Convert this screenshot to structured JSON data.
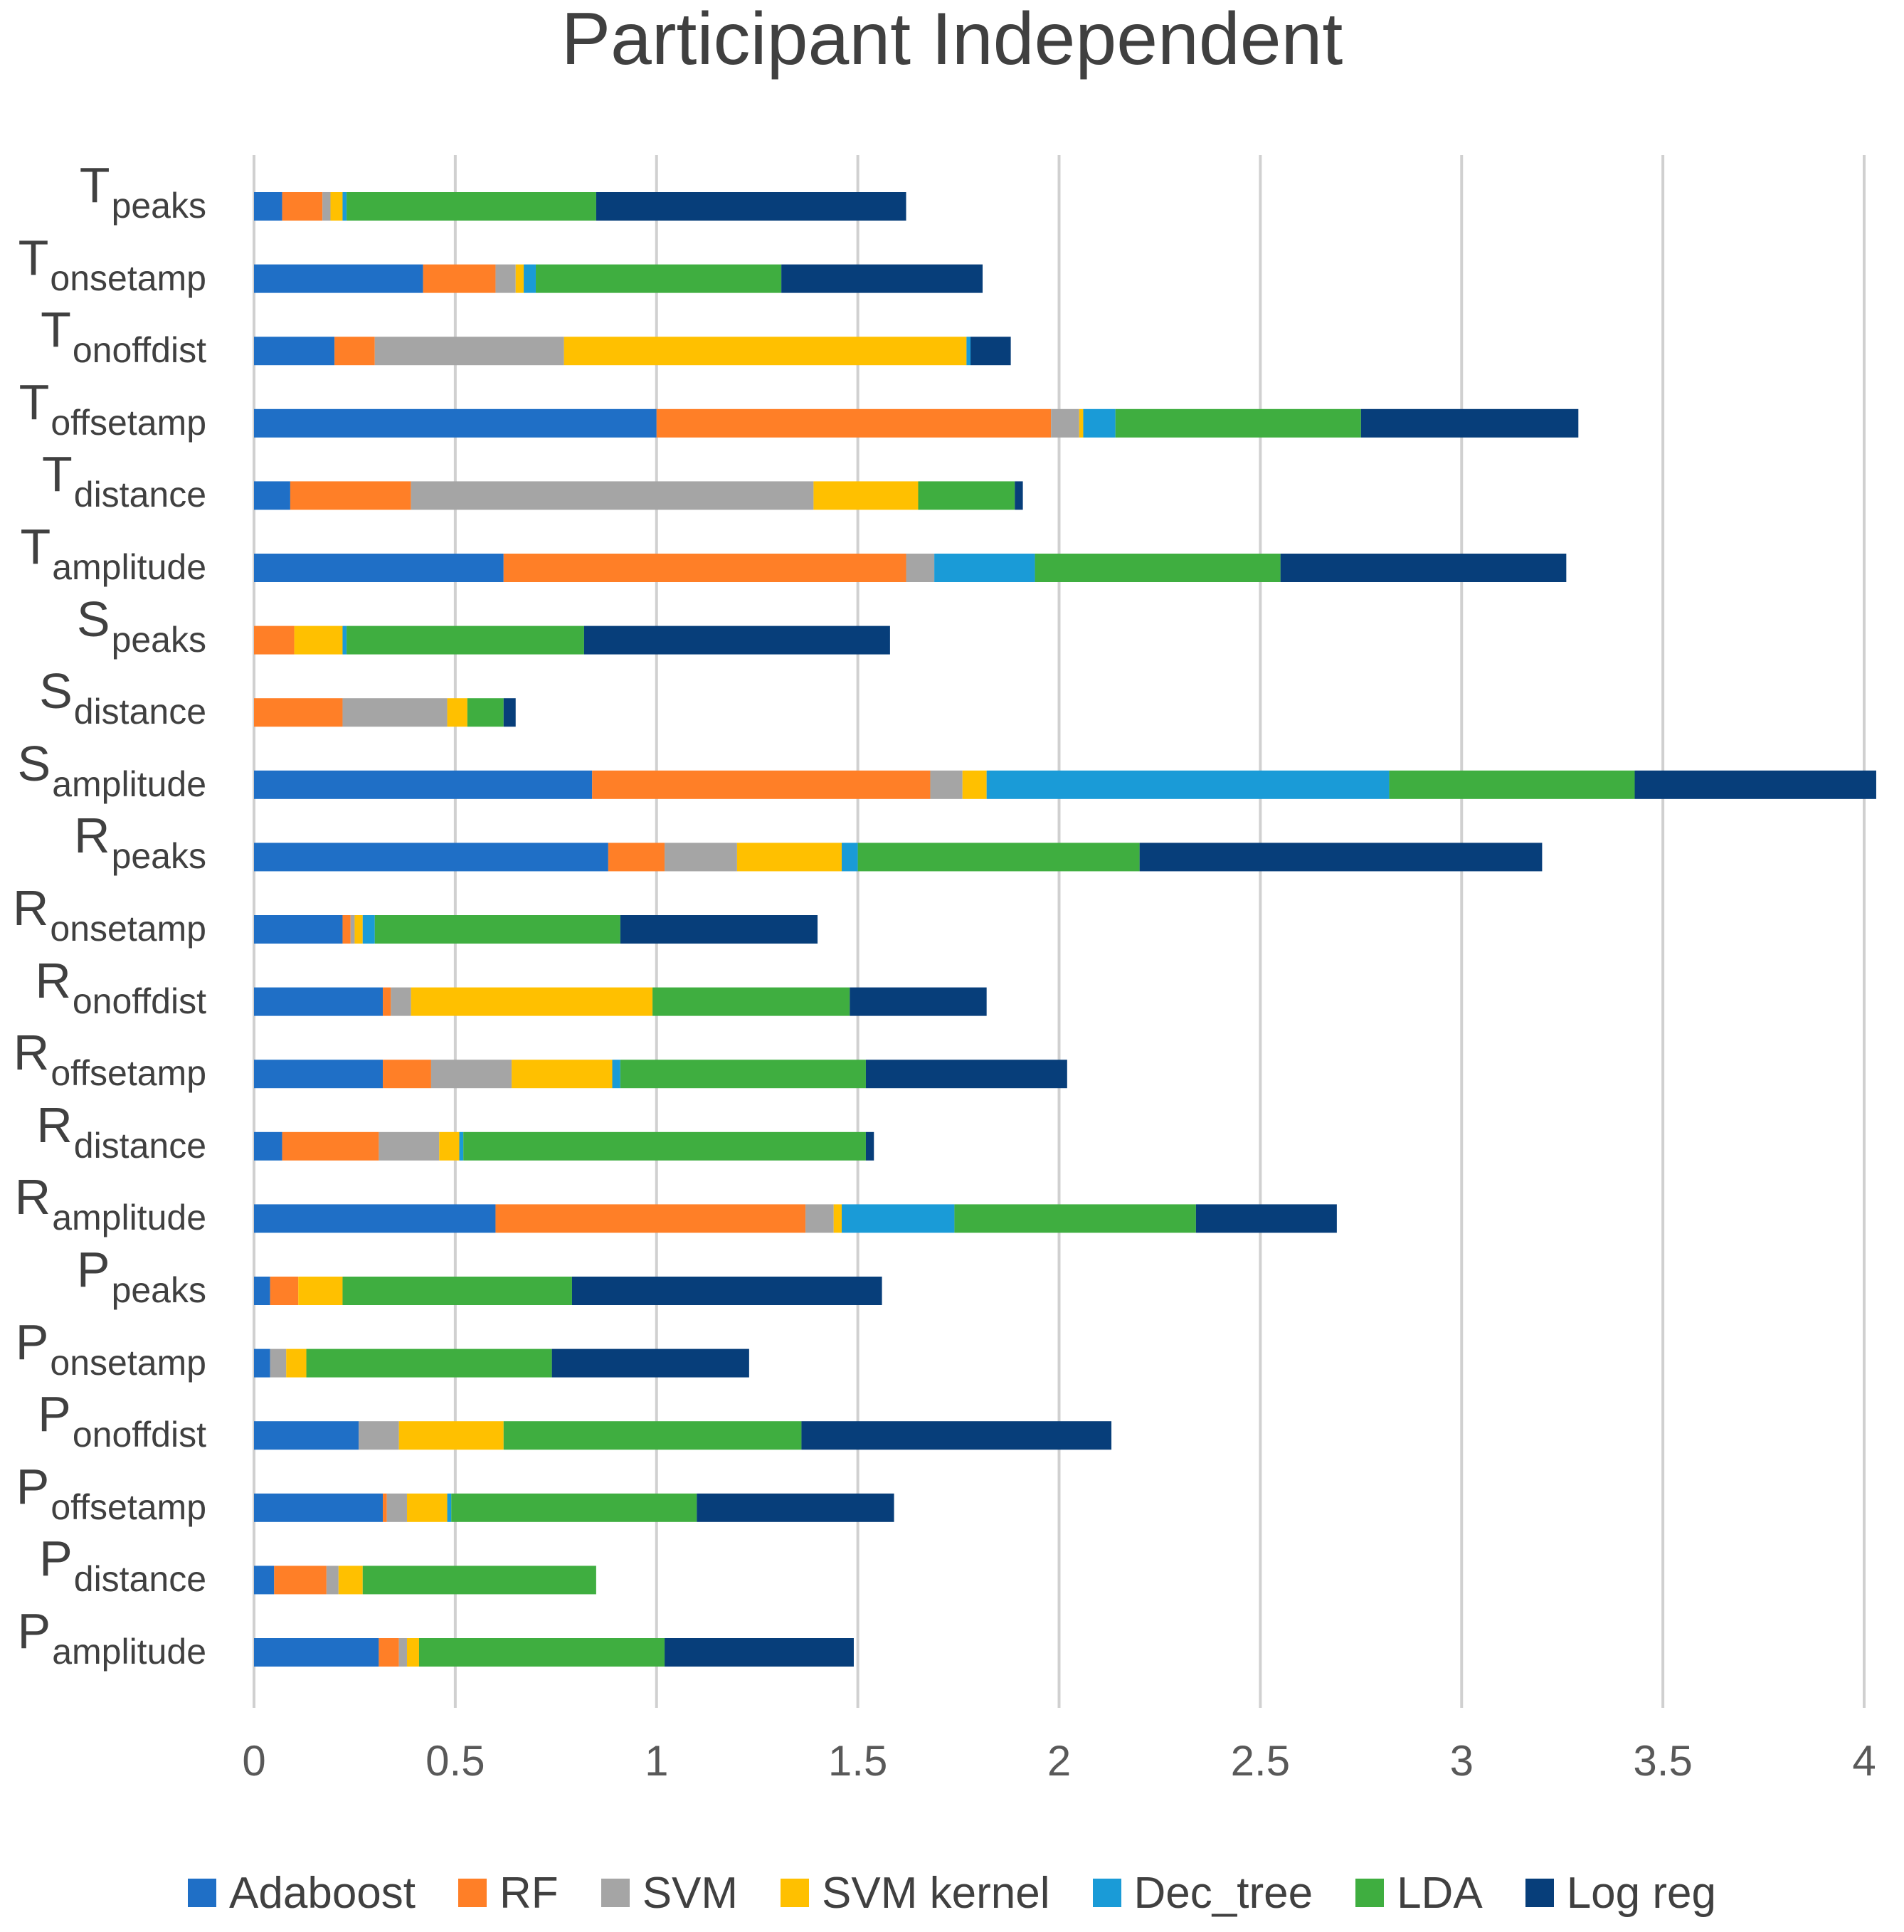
{
  "chart_data": {
    "type": "bar",
    "orientation": "horizontal",
    "stacked": true,
    "title": "Participant Independent",
    "xlabel": "",
    "ylabel": "",
    "xlim": [
      0,
      4
    ],
    "xticks": [
      "0",
      "0.5",
      "1",
      "1.5",
      "2",
      "2.5",
      "3",
      "3.5",
      "4"
    ],
    "grid": true,
    "legend_position": "bottom",
    "categories": [
      {
        "main": "T",
        "sub": "peaks"
      },
      {
        "main": "T",
        "sub": "onsetamp"
      },
      {
        "main": "T",
        "sub": "onoffdist"
      },
      {
        "main": "T",
        "sub": "offsetamp"
      },
      {
        "main": "T",
        "sub": "distance"
      },
      {
        "main": "T",
        "sub": "amplitude"
      },
      {
        "main": "S",
        "sub": "peaks"
      },
      {
        "main": "S",
        "sub": "distance"
      },
      {
        "main": "S",
        "sub": "amplitude"
      },
      {
        "main": "R",
        "sub": "peaks"
      },
      {
        "main": "R",
        "sub": "onsetamp"
      },
      {
        "main": "R",
        "sub": "onoffdist"
      },
      {
        "main": "R",
        "sub": "offsetamp"
      },
      {
        "main": "R",
        "sub": "distance"
      },
      {
        "main": "R",
        "sub": "amplitude"
      },
      {
        "main": "P",
        "sub": "peaks"
      },
      {
        "main": "P",
        "sub": "onsetamp"
      },
      {
        "main": "P",
        "sub": "onoffdist"
      },
      {
        "main": "P",
        "sub": "offsetamp"
      },
      {
        "main": "P",
        "sub": "distance"
      },
      {
        "main": "P",
        "sub": "amplitude"
      }
    ],
    "series": [
      {
        "name": "Adaboost",
        "color": "#1F6FC6",
        "values": [
          0.07,
          0.42,
          0.2,
          1.0,
          0.09,
          0.62,
          0.0,
          0.0,
          0.84,
          0.88,
          0.22,
          0.32,
          0.32,
          0.07,
          0.6,
          0.04,
          0.04,
          0.26,
          0.32,
          0.05,
          0.31
        ]
      },
      {
        "name": "RF",
        "color": "#FF7F27",
        "values": [
          0.1,
          0.18,
          0.1,
          0.98,
          0.3,
          1.0,
          0.1,
          0.22,
          0.84,
          0.14,
          0.02,
          0.02,
          0.12,
          0.24,
          0.77,
          0.07,
          0.0,
          0.0,
          0.01,
          0.13,
          0.05
        ]
      },
      {
        "name": "SVM",
        "color": "#A5A5A5",
        "values": [
          0.02,
          0.05,
          0.47,
          0.07,
          1.0,
          0.07,
          0.0,
          0.26,
          0.08,
          0.18,
          0.01,
          0.05,
          0.2,
          0.15,
          0.07,
          0.0,
          0.04,
          0.1,
          0.05,
          0.03,
          0.02
        ]
      },
      {
        "name": "SVM kernel",
        "color": "#FFC000",
        "values": [
          0.03,
          0.02,
          1.0,
          0.01,
          0.26,
          0.0,
          0.12,
          0.05,
          0.06,
          0.26,
          0.02,
          0.6,
          0.25,
          0.05,
          0.02,
          0.11,
          0.05,
          0.26,
          0.1,
          0.06,
          0.03
        ]
      },
      {
        "name": "Dec_tree",
        "color": "#1A9BD7",
        "values": [
          0.01,
          0.03,
          0.01,
          0.08,
          0.0,
          0.25,
          0.01,
          0.0,
          1.0,
          0.04,
          0.03,
          0.0,
          0.02,
          0.01,
          0.28,
          0.0,
          0.0,
          0.0,
          0.01,
          0.0,
          0.0
        ]
      },
      {
        "name": "LDA",
        "color": "#3FAE40",
        "values": [
          0.62,
          0.61,
          0.0,
          0.61,
          0.24,
          0.61,
          0.59,
          0.09,
          0.61,
          0.7,
          0.61,
          0.49,
          0.61,
          1.0,
          0.6,
          0.57,
          0.61,
          0.74,
          0.61,
          0.58,
          0.61
        ]
      },
      {
        "name": "Log reg",
        "color": "#073E7A",
        "values": [
          0.77,
          0.5,
          0.1,
          0.54,
          0.02,
          0.71,
          0.76,
          0.03,
          0.6,
          1.0,
          0.49,
          0.34,
          0.5,
          0.02,
          0.35,
          0.77,
          0.49,
          0.77,
          0.49,
          0.0,
          0.47
        ]
      }
    ]
  }
}
